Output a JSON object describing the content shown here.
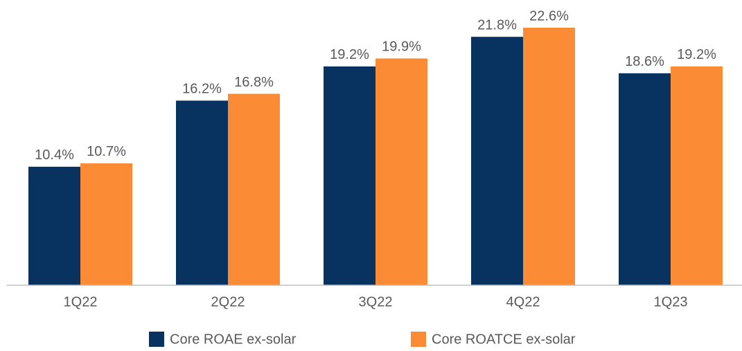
{
  "chart_data": {
    "type": "bar",
    "categories": [
      "1Q22",
      "2Q22",
      "3Q22",
      "4Q22",
      "1Q23"
    ],
    "series": [
      {
        "name": "Core ROAE ex-solar",
        "color": "#08325f",
        "values": [
          10.4,
          16.2,
          19.2,
          21.8,
          18.6
        ],
        "value_labels": [
          "10.4%",
          "16.2%",
          "19.2%",
          "21.8%",
          "18.6%"
        ]
      },
      {
        "name": "Core ROATCE ex-solar",
        "color": "#fb8c35",
        "values": [
          10.7,
          16.8,
          19.9,
          22.6,
          19.2
        ],
        "value_labels": [
          "10.7%",
          "16.8%",
          "19.9%",
          "22.6%",
          "19.2%"
        ]
      }
    ],
    "ylim": [
      0,
      25
    ]
  }
}
